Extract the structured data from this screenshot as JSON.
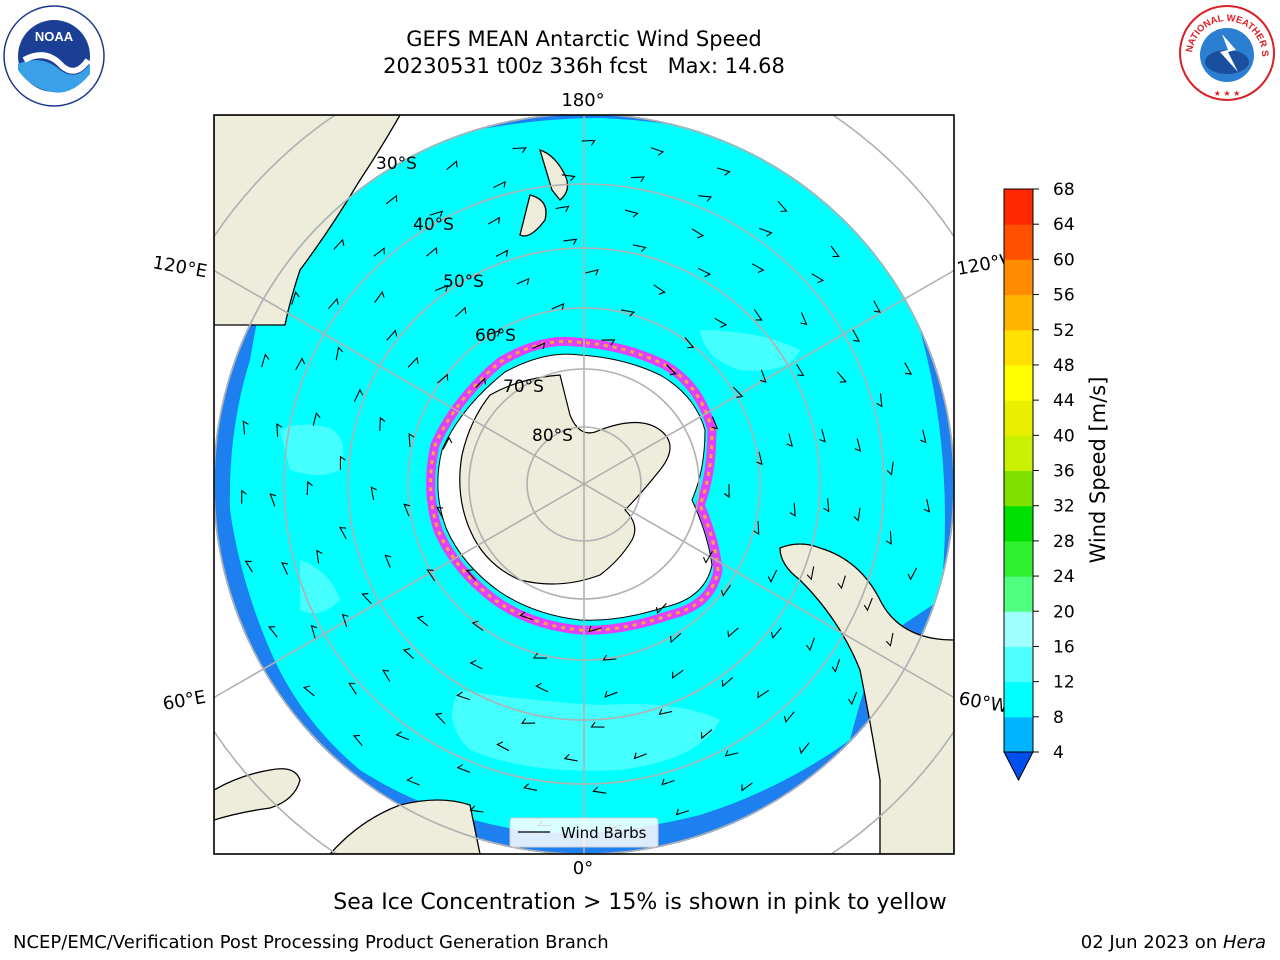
{
  "title": {
    "line1": "GEFS MEAN Antarctic Wind Speed",
    "line2": "20230531 t00z 336h fcst   Max: 14.68"
  },
  "map": {
    "projection": "south polar stereographic",
    "lon_labels": {
      "top": "180°",
      "bottom": "0°",
      "upper_left": "120°E",
      "upper_right": "120°W",
      "lower_left": "60°E",
      "lower_right": "60°W"
    },
    "lat_labels": [
      "30°S",
      "40°S",
      "50°S",
      "60°S",
      "70°S",
      "80°S"
    ],
    "legend": {
      "wind_barbs": "Wind Barbs"
    },
    "colors": {
      "land": "#eeeddb",
      "ice_shelf": "#ffffff",
      "wind_4_8": "#1e7ff0",
      "wind_8_12": "#00ffff",
      "wind_12_16": "#4dffff",
      "sea_ice": "#e040ff"
    }
  },
  "colorbar": {
    "label": "Wind Speed [m/s]",
    "ticks": [
      "4",
      "8",
      "12",
      "16",
      "20",
      "24",
      "28",
      "32",
      "36",
      "40",
      "44",
      "48",
      "52",
      "56",
      "60",
      "64",
      "68"
    ],
    "colors": [
      "#0050f0",
      "#00b4ff",
      "#00ffff",
      "#4dffff",
      "#a0ffff",
      "#50ff80",
      "#30f030",
      "#00e000",
      "#80e000",
      "#c8f000",
      "#e8f000",
      "#ffff00",
      "#ffe000",
      "#ffb400",
      "#ff8c00",
      "#ff5000",
      "#ff2800",
      "#ff0000"
    ]
  },
  "caption": "Sea Ice Concentration > 15% is shown in pink to yellow",
  "footer": {
    "left": "NCEP/EMC/Verification Post Processing Product Generation Branch",
    "right_date": "02 Jun 2023 on ",
    "right_host": "Hera"
  },
  "logos": {
    "noaa": "NOAA",
    "nws": "NATIONAL WEATHER SERVICE"
  }
}
